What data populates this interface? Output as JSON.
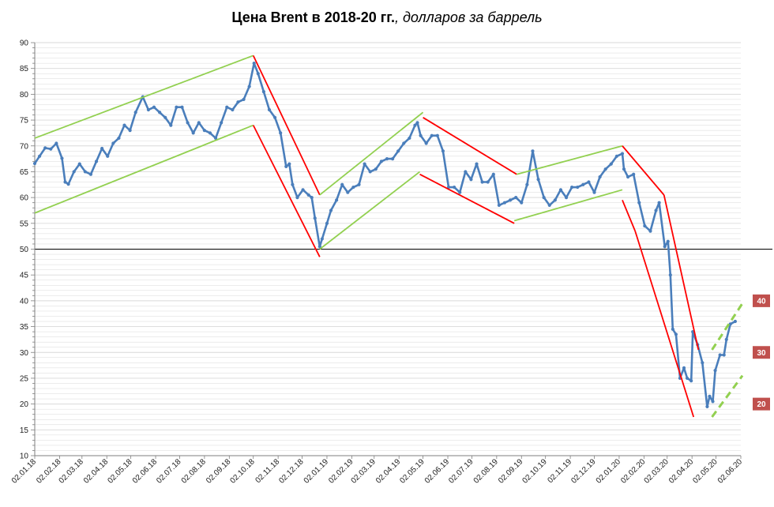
{
  "title": {
    "bold": "Цена Brent в 2018-20 гг.",
    "italic": ", долларов за баррель"
  },
  "colors": {
    "series": "#4a7ebb",
    "uptrend": "#92d050",
    "downtrend": "#ff0000",
    "badge": "#c0504d",
    "grid": "#d9d9d9",
    "reference": "#000000"
  },
  "chart_data": {
    "type": "line",
    "title": "Цена Brent в 2018-20 гг., долларов за баррель",
    "ylim": [
      10,
      90
    ],
    "yticks": [
      10,
      15,
      20,
      25,
      30,
      35,
      40,
      45,
      50,
      55,
      60,
      65,
      70,
      75,
      80,
      85,
      90
    ],
    "xlim": [
      "2018-01-02",
      "2020-06-02"
    ],
    "xticks": [
      "02.01.18",
      "02.02.18",
      "02.03.18",
      "02.04.18",
      "02.05.18",
      "02.06.18",
      "02.07.18",
      "02.08.18",
      "02.09.18",
      "02.10.18",
      "02.11.18",
      "02.12.18",
      "02.01.19",
      "02.02.19",
      "02.03.19",
      "02.04.19",
      "02.05.19",
      "02.06.19",
      "02.07.19",
      "02.08.19",
      "02.09.19",
      "02.10.19",
      "02.11.19",
      "02.12.19",
      "02.01.20",
      "02.02.20",
      "02.03.20",
      "02.04.20",
      "02.05.20",
      "02.06.20"
    ],
    "grid": true,
    "reference_line": 50,
    "series": [
      {
        "values": [
          [
            "2018-01-02",
            66.6
          ],
          [
            "2018-01-08",
            68.0
          ],
          [
            "2018-01-15",
            69.6
          ],
          [
            "2018-01-22",
            69.4
          ],
          [
            "2018-01-29",
            70.5
          ],
          [
            "2018-02-05",
            67.6
          ],
          [
            "2018-02-09",
            63.0
          ],
          [
            "2018-02-13",
            62.6
          ],
          [
            "2018-02-20",
            65.0
          ],
          [
            "2018-02-27",
            66.5
          ],
          [
            "2018-03-06",
            65.0
          ],
          [
            "2018-03-13",
            64.5
          ],
          [
            "2018-03-20",
            67.0
          ],
          [
            "2018-03-27",
            69.5
          ],
          [
            "2018-04-03",
            68.0
          ],
          [
            "2018-04-10",
            70.5
          ],
          [
            "2018-04-17",
            71.5
          ],
          [
            "2018-04-24",
            74.0
          ],
          [
            "2018-05-01",
            73.0
          ],
          [
            "2018-05-08",
            76.5
          ],
          [
            "2018-05-17",
            79.5
          ],
          [
            "2018-05-24",
            77.0
          ],
          [
            "2018-05-31",
            77.5
          ],
          [
            "2018-06-07",
            76.5
          ],
          [
            "2018-06-14",
            75.5
          ],
          [
            "2018-06-21",
            74.0
          ],
          [
            "2018-06-28",
            77.5
          ],
          [
            "2018-07-05",
            77.5
          ],
          [
            "2018-07-12",
            74.5
          ],
          [
            "2018-07-19",
            72.5
          ],
          [
            "2018-07-26",
            74.5
          ],
          [
            "2018-08-02",
            73.0
          ],
          [
            "2018-08-09",
            72.5
          ],
          [
            "2018-08-16",
            71.5
          ],
          [
            "2018-08-23",
            74.5
          ],
          [
            "2018-08-30",
            77.5
          ],
          [
            "2018-09-06",
            77.0
          ],
          [
            "2018-09-13",
            78.5
          ],
          [
            "2018-09-20",
            79.0
          ],
          [
            "2018-09-27",
            81.5
          ],
          [
            "2018-10-03",
            86.0
          ],
          [
            "2018-10-08",
            84.0
          ],
          [
            "2018-10-15",
            80.5
          ],
          [
            "2018-10-22",
            77.0
          ],
          [
            "2018-10-29",
            75.5
          ],
          [
            "2018-11-05",
            72.5
          ],
          [
            "2018-11-12",
            66.0
          ],
          [
            "2018-11-16",
            66.5
          ],
          [
            "2018-11-20",
            62.5
          ],
          [
            "2018-11-26",
            60.0
          ],
          [
            "2018-12-03",
            61.5
          ],
          [
            "2018-12-10",
            60.5
          ],
          [
            "2018-12-14",
            60.0
          ],
          [
            "2018-12-18",
            56.0
          ],
          [
            "2018-12-24",
            50.5
          ],
          [
            "2018-12-27",
            52.0
          ],
          [
            "2019-01-02",
            55.0
          ],
          [
            "2019-01-07",
            57.5
          ],
          [
            "2019-01-14",
            59.5
          ],
          [
            "2019-01-21",
            62.5
          ],
          [
            "2019-01-28",
            61.0
          ],
          [
            "2019-02-04",
            62.0
          ],
          [
            "2019-02-11",
            62.5
          ],
          [
            "2019-02-18",
            66.5
          ],
          [
            "2019-02-25",
            65.0
          ],
          [
            "2019-03-04",
            65.5
          ],
          [
            "2019-03-11",
            67.0
          ],
          [
            "2019-03-18",
            67.5
          ],
          [
            "2019-03-25",
            67.5
          ],
          [
            "2019-04-01",
            69.0
          ],
          [
            "2019-04-08",
            70.5
          ],
          [
            "2019-04-15",
            71.5
          ],
          [
            "2019-04-22",
            74.0
          ],
          [
            "2019-04-25",
            74.5
          ],
          [
            "2019-04-29",
            72.0
          ],
          [
            "2019-05-06",
            70.5
          ],
          [
            "2019-05-13",
            72.0
          ],
          [
            "2019-05-20",
            72.0
          ],
          [
            "2019-05-27",
            69.0
          ],
          [
            "2019-06-03",
            62.0
          ],
          [
            "2019-06-10",
            62.0
          ],
          [
            "2019-06-17",
            61.0
          ],
          [
            "2019-06-24",
            65.0
          ],
          [
            "2019-07-01",
            63.5
          ],
          [
            "2019-07-08",
            66.5
          ],
          [
            "2019-07-15",
            63.0
          ],
          [
            "2019-07-22",
            63.0
          ],
          [
            "2019-07-29",
            64.5
          ],
          [
            "2019-08-05",
            58.5
          ],
          [
            "2019-08-12",
            59.0
          ],
          [
            "2019-08-19",
            59.5
          ],
          [
            "2019-08-26",
            60.0
          ],
          [
            "2019-09-02",
            59.0
          ],
          [
            "2019-09-09",
            62.5
          ],
          [
            "2019-09-16",
            69.0
          ],
          [
            "2019-09-23",
            63.5
          ],
          [
            "2019-09-30",
            60.0
          ],
          [
            "2019-10-07",
            58.5
          ],
          [
            "2019-10-14",
            59.5
          ],
          [
            "2019-10-21",
            61.5
          ],
          [
            "2019-10-28",
            60.0
          ],
          [
            "2019-11-04",
            62.0
          ],
          [
            "2019-11-11",
            62.0
          ],
          [
            "2019-11-18",
            62.5
          ],
          [
            "2019-11-25",
            63.0
          ],
          [
            "2019-12-02",
            61.0
          ],
          [
            "2019-12-09",
            64.0
          ],
          [
            "2019-12-16",
            65.5
          ],
          [
            "2019-12-23",
            66.5
          ],
          [
            "2019-12-30",
            68.0
          ],
          [
            "2020-01-06",
            68.5
          ],
          [
            "2020-01-08",
            65.5
          ],
          [
            "2020-01-13",
            64.0
          ],
          [
            "2020-01-20",
            64.5
          ],
          [
            "2020-01-27",
            59.0
          ],
          [
            "2020-02-03",
            54.5
          ],
          [
            "2020-02-10",
            53.5
          ],
          [
            "2020-02-17",
            57.5
          ],
          [
            "2020-02-21",
            59.0
          ],
          [
            "2020-02-28",
            50.5
          ],
          [
            "2020-03-03",
            51.5
          ],
          [
            "2020-03-06",
            45.0
          ],
          [
            "2020-03-09",
            34.5
          ],
          [
            "2020-03-13",
            33.5
          ],
          [
            "2020-03-18",
            25.0
          ],
          [
            "2020-03-23",
            27.0
          ],
          [
            "2020-03-27",
            25.0
          ],
          [
            "2020-04-01",
            24.5
          ],
          [
            "2020-04-03",
            34.0
          ],
          [
            "2020-04-09",
            31.5
          ],
          [
            "2020-04-15",
            28.0
          ],
          [
            "2020-04-21",
            19.5
          ],
          [
            "2020-04-24",
            21.5
          ],
          [
            "2020-04-28",
            20.5
          ],
          [
            "2020-05-01",
            26.5
          ],
          [
            "2020-05-07",
            29.5
          ],
          [
            "2020-05-12",
            29.5
          ],
          [
            "2020-05-15",
            32.5
          ],
          [
            "2020-05-20",
            35.5
          ],
          [
            "2020-05-26",
            36.0
          ]
        ]
      }
    ],
    "trend_lines": [
      {
        "kind": "up",
        "points": [
          [
            "2018-01-02",
            71.5
          ],
          [
            "2018-10-02",
            87.5
          ]
        ]
      },
      {
        "kind": "up",
        "points": [
          [
            "2018-01-02",
            57.0
          ],
          [
            "2018-10-02",
            74.0
          ]
        ]
      },
      {
        "kind": "down",
        "points": [
          [
            "2018-10-02",
            87.5
          ],
          [
            "2018-12-24",
            60.5
          ]
        ]
      },
      {
        "kind": "down",
        "points": [
          [
            "2018-10-02",
            74.0
          ],
          [
            "2018-12-24",
            48.5
          ]
        ]
      },
      {
        "kind": "up",
        "points": [
          [
            "2018-12-24",
            60.5
          ],
          [
            "2019-05-02",
            76.5
          ]
        ]
      },
      {
        "kind": "up",
        "points": [
          [
            "2018-12-24",
            50.0
          ],
          [
            "2019-04-28",
            65.0
          ]
        ]
      },
      {
        "kind": "down",
        "points": [
          [
            "2019-05-02",
            75.5
          ],
          [
            "2019-08-27",
            64.5
          ]
        ]
      },
      {
        "kind": "down",
        "points": [
          [
            "2019-04-28",
            64.5
          ],
          [
            "2019-08-24",
            55.0
          ]
        ]
      },
      {
        "kind": "up",
        "points": [
          [
            "2019-08-27",
            64.5
          ],
          [
            "2020-01-06",
            70.0
          ]
        ]
      },
      {
        "kind": "up",
        "points": [
          [
            "2019-08-24",
            55.5
          ],
          [
            "2020-01-06",
            61.5
          ]
        ]
      },
      {
        "kind": "down",
        "points": [
          [
            "2020-01-06",
            70.0
          ],
          [
            "2020-02-27",
            60.5
          ]
        ]
      },
      {
        "kind": "down",
        "points": [
          [
            "2020-02-27",
            60.5
          ],
          [
            "2020-04-10",
            30.5
          ]
        ]
      },
      {
        "kind": "down",
        "points": [
          [
            "2020-01-06",
            59.5
          ],
          [
            "2020-01-22",
            53.5
          ]
        ]
      },
      {
        "kind": "down",
        "points": [
          [
            "2020-01-22",
            53.5
          ],
          [
            "2020-04-04",
            17.5
          ]
        ]
      },
      {
        "kind": "up-dashed",
        "points": [
          [
            "2020-04-27",
            30.5
          ],
          [
            "2020-06-04",
            39.5
          ]
        ]
      },
      {
        "kind": "up-dashed",
        "points": [
          [
            "2020-04-27",
            17.5
          ],
          [
            "2020-06-04",
            25.5
          ]
        ]
      }
    ],
    "annotations": [
      {
        "text": "40",
        "y": 40
      },
      {
        "text": "30",
        "y": 30
      },
      {
        "text": "20",
        "y": 20
      }
    ]
  }
}
